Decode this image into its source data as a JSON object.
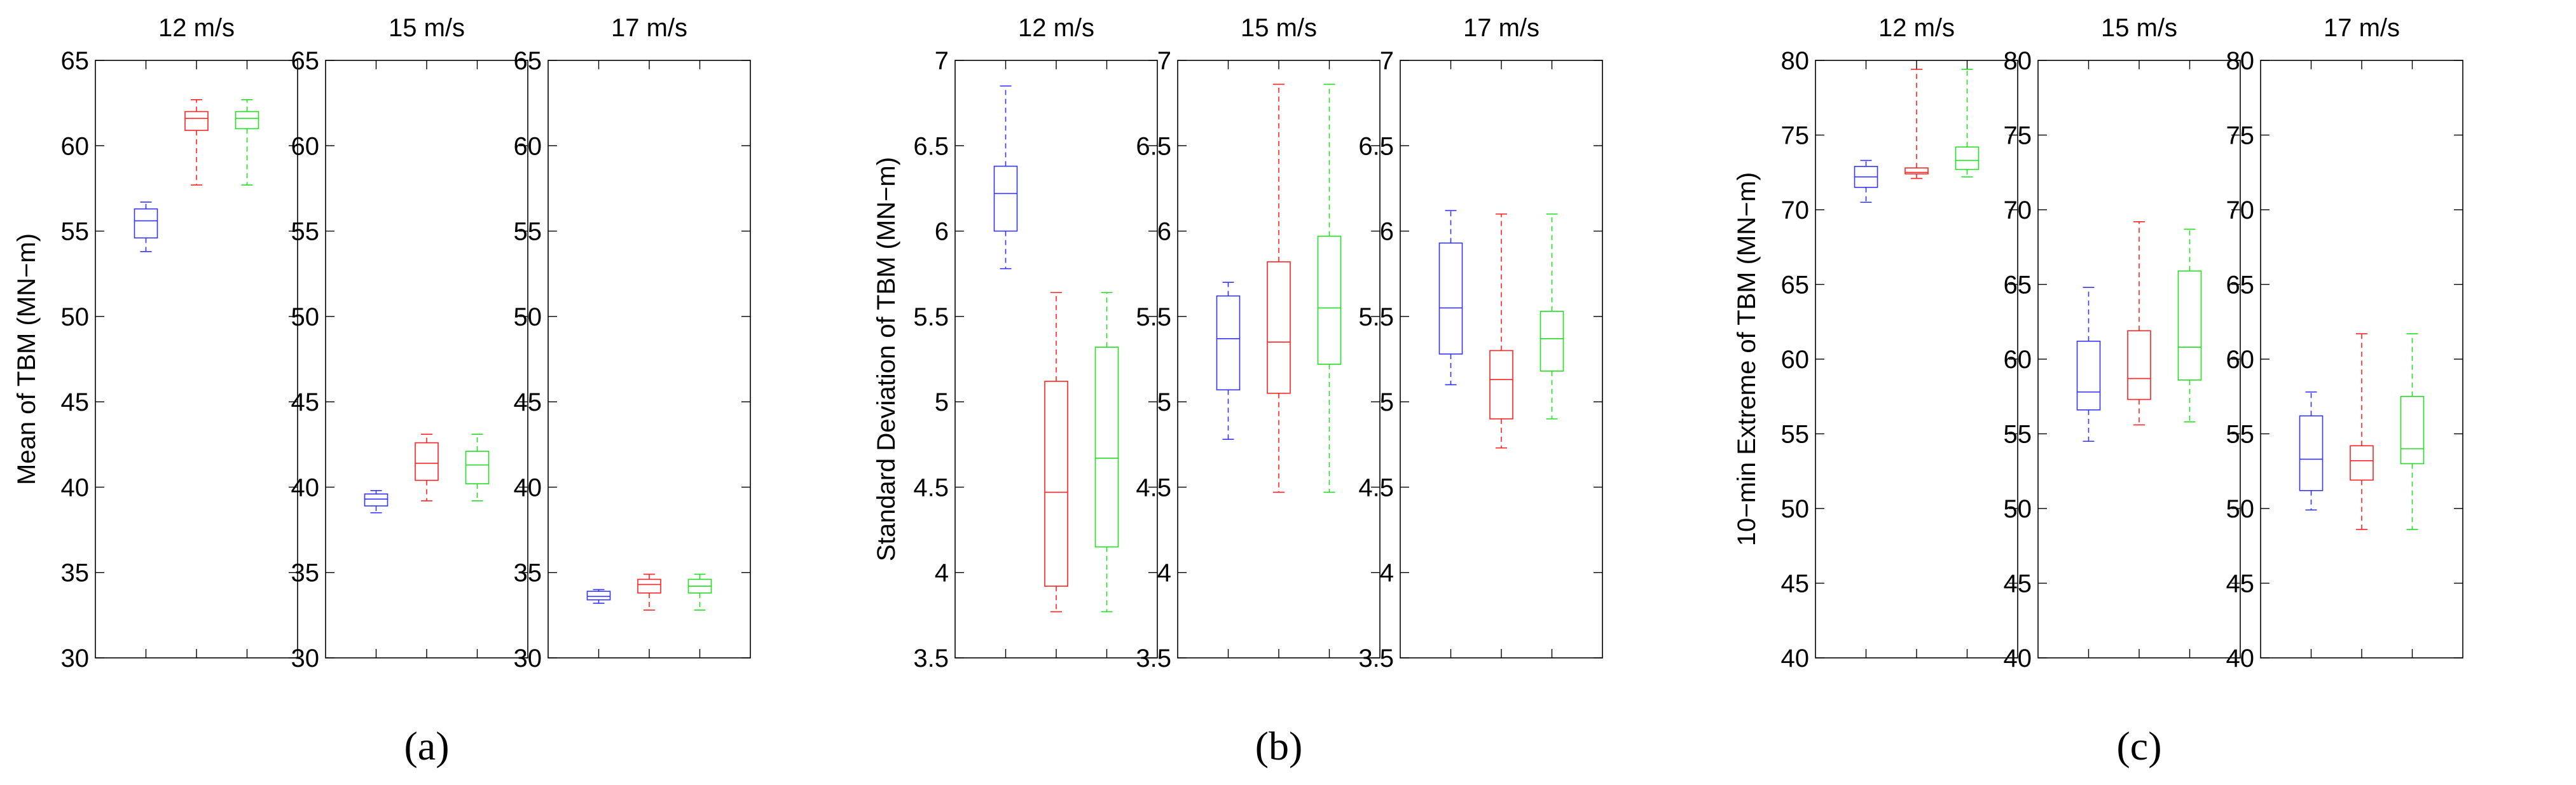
{
  "colors": {
    "series": [
      "#3333ff",
      "#ff2222",
      "#22dd22"
    ],
    "axis": "#000000"
  },
  "chart_data": [
    {
      "type": "box",
      "group": "a",
      "caption": "(a)",
      "ylabel": "Mean of TBM (MN−m)",
      "ylim": [
        30,
        65
      ],
      "yticks": [
        "30",
        "35",
        "40",
        "45",
        "50",
        "55",
        "60",
        "65"
      ],
      "panels": [
        {
          "title": "12 m/s",
          "boxes": [
            {
              "min": 53.8,
              "q1": 54.6,
              "median": 55.6,
              "q3": 56.3,
              "max": 56.7
            },
            {
              "min": 57.7,
              "q1": 60.9,
              "median": 61.6,
              "q3": 62.0,
              "max": 62.7
            },
            {
              "min": 57.7,
              "q1": 61.0,
              "median": 61.6,
              "q3": 62.0,
              "max": 62.7
            }
          ]
        },
        {
          "title": "15 m/s",
          "boxes": [
            {
              "min": 38.5,
              "q1": 38.9,
              "median": 39.3,
              "q3": 39.6,
              "max": 39.8
            },
            {
              "min": 39.2,
              "q1": 40.4,
              "median": 41.4,
              "q3": 42.6,
              "max": 43.1
            },
            {
              "min": 39.2,
              "q1": 40.2,
              "median": 41.3,
              "q3": 42.1,
              "max": 43.1
            }
          ]
        },
        {
          "title": "17 m/s",
          "boxes": [
            {
              "min": 33.2,
              "q1": 33.4,
              "median": 33.6,
              "q3": 33.9,
              "max": 34.0
            },
            {
              "min": 32.8,
              "q1": 33.8,
              "median": 34.3,
              "q3": 34.6,
              "max": 34.9
            },
            {
              "min": 32.8,
              "q1": 33.8,
              "median": 34.2,
              "q3": 34.6,
              "max": 34.9
            }
          ]
        }
      ]
    },
    {
      "type": "box",
      "group": "b",
      "caption": "(b)",
      "ylabel": "Standard Deviation of TBM (MN−m)",
      "ylim": [
        3.5,
        7
      ],
      "yticks": [
        "3.5",
        "4",
        "4.5",
        "5",
        "5.5",
        "6",
        "6.5",
        "7"
      ],
      "panels": [
        {
          "title": "12 m/s",
          "boxes": [
            {
              "min": 5.78,
              "q1": 6.0,
              "median": 6.22,
              "q3": 6.38,
              "max": 6.85
            },
            {
              "min": 3.77,
              "q1": 3.92,
              "median": 4.47,
              "q3": 5.12,
              "max": 5.64
            },
            {
              "min": 3.77,
              "q1": 4.15,
              "median": 4.67,
              "q3": 5.32,
              "max": 5.64
            }
          ]
        },
        {
          "title": "15 m/s",
          "boxes": [
            {
              "min": 4.78,
              "q1": 5.07,
              "median": 5.37,
              "q3": 5.62,
              "max": 5.7
            },
            {
              "min": 4.47,
              "q1": 5.05,
              "median": 5.35,
              "q3": 5.82,
              "max": 6.86
            },
            {
              "min": 4.47,
              "q1": 5.22,
              "median": 5.55,
              "q3": 5.97,
              "max": 6.86
            }
          ]
        },
        {
          "title": "17 m/s",
          "boxes": [
            {
              "min": 5.1,
              "q1": 5.28,
              "median": 5.55,
              "q3": 5.93,
              "max": 6.12
            },
            {
              "min": 4.73,
              "q1": 4.9,
              "median": 5.13,
              "q3": 5.3,
              "max": 6.1
            },
            {
              "min": 4.9,
              "q1": 5.18,
              "median": 5.37,
              "q3": 5.53,
              "max": 6.1
            }
          ]
        }
      ]
    },
    {
      "type": "box",
      "group": "c",
      "caption": "(c)",
      "ylabel": "10−min Extreme of TBM (MN−m)",
      "ylim": [
        40,
        80
      ],
      "yticks": [
        "40",
        "45",
        "50",
        "55",
        "60",
        "65",
        "70",
        "75",
        "80"
      ],
      "panels": [
        {
          "title": "12 m/s",
          "boxes": [
            {
              "min": 70.5,
              "q1": 71.5,
              "median": 72.2,
              "q3": 72.9,
              "max": 73.3
            },
            {
              "min": 72.1,
              "q1": 72.4,
              "median": 72.5,
              "q3": 72.8,
              "max": 79.4
            },
            {
              "min": 72.2,
              "q1": 72.7,
              "median": 73.3,
              "q3": 74.2,
              "max": 79.4
            }
          ]
        },
        {
          "title": "15 m/s",
          "boxes": [
            {
              "min": 54.5,
              "q1": 56.6,
              "median": 57.8,
              "q3": 61.2,
              "max": 64.8
            },
            {
              "min": 55.6,
              "q1": 57.3,
              "median": 58.7,
              "q3": 61.9,
              "max": 69.2
            },
            {
              "min": 55.8,
              "q1": 58.6,
              "median": 60.8,
              "q3": 65.9,
              "max": 68.7
            }
          ]
        },
        {
          "title": "17 m/s",
          "boxes": [
            {
              "min": 49.9,
              "q1": 51.2,
              "median": 53.3,
              "q3": 56.2,
              "max": 57.8
            },
            {
              "min": 48.6,
              "q1": 51.9,
              "median": 53.2,
              "q3": 54.2,
              "max": 61.7
            },
            {
              "min": 48.6,
              "q1": 53.0,
              "median": 54.0,
              "q3": 57.5,
              "max": 61.7
            }
          ]
        }
      ]
    }
  ]
}
